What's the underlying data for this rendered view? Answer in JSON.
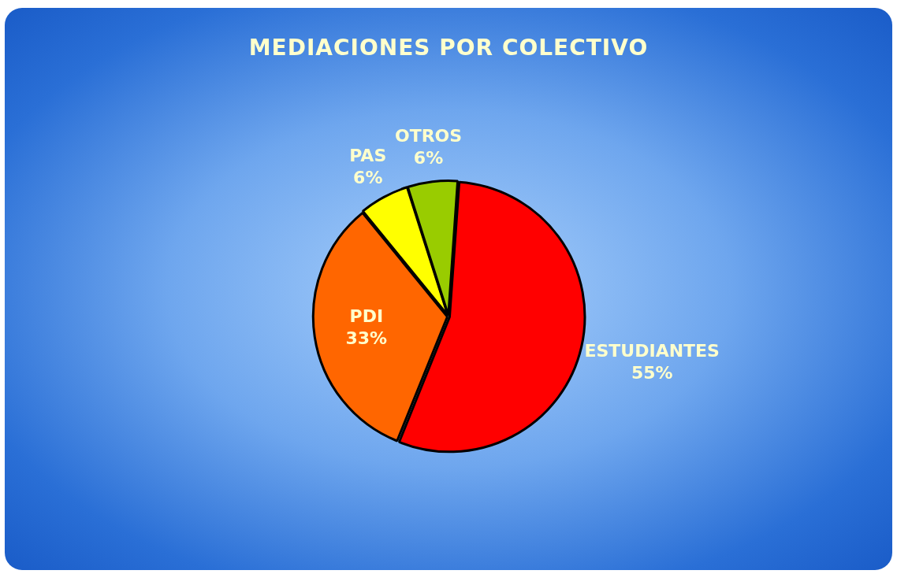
{
  "chart_data": {
    "type": "pie",
    "title": "MEDIACIONES POR COLECTIVO",
    "categories": [
      "ESTUDIANTES",
      "PDI",
      "PAS",
      "OTROS"
    ],
    "values": [
      55,
      33,
      6,
      6
    ],
    "value_labels": [
      "55%",
      "33%",
      "6%",
      "6%"
    ],
    "colors": [
      "#ff0000",
      "#ff6600",
      "#ffff00",
      "#99cc00"
    ],
    "legend": false
  }
}
